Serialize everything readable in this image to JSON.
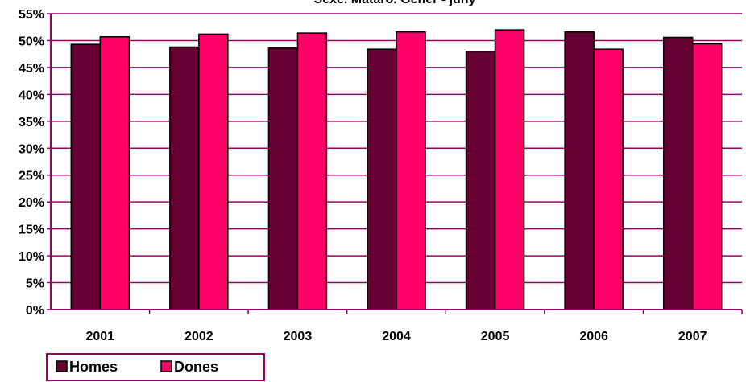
{
  "chart_data": {
    "type": "bar",
    "title": "Sexe. Matarò. Gener - juny",
    "xlabel": "",
    "ylabel": "",
    "categories": [
      "2001",
      "2002",
      "2003",
      "2004",
      "2005",
      "2006",
      "2007"
    ],
    "series": [
      {
        "name": "Homes",
        "color": "#660033",
        "values": [
          49.3,
          48.8,
          48.6,
          48.4,
          48.0,
          51.6,
          50.6
        ]
      },
      {
        "name": "Dones",
        "color": "#ff0066",
        "values": [
          50.7,
          51.2,
          51.4,
          51.6,
          52.0,
          48.4,
          49.4
        ]
      }
    ],
    "ylim": [
      0,
      55
    ],
    "yticks": [
      "0%",
      "5%",
      "10%",
      "15%",
      "20%",
      "25%",
      "30%",
      "35%",
      "40%",
      "45%",
      "50%",
      "55%"
    ],
    "grid": true,
    "gridline_color": "#990066",
    "legend_position": "bottom-left"
  }
}
